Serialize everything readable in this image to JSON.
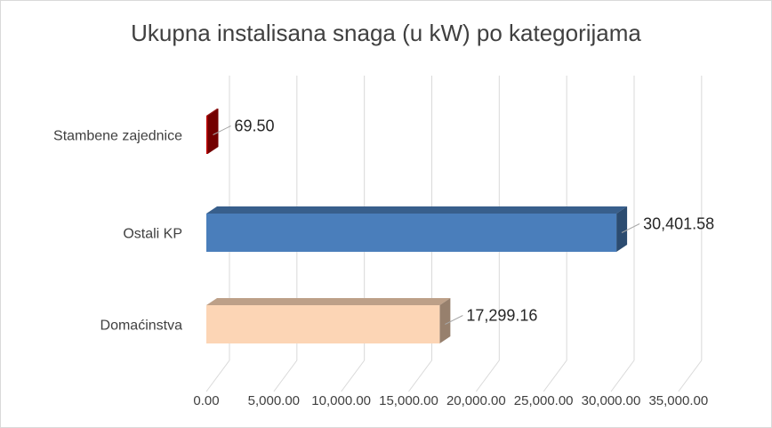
{
  "chart_data": {
    "type": "bar",
    "orientation": "horizontal",
    "style": "3d",
    "title": "Ukupna instalisana snaga (u kW) po kategorijama",
    "categories": [
      "Stambene zajednice",
      "Ostali KP",
      "Domaćinstva"
    ],
    "values": [
      69.5,
      30401.58,
      17299.16
    ],
    "value_labels": [
      "69.50",
      "30,401.58",
      "17,299.16"
    ],
    "colors": [
      "#c00000",
      "#4a7ebb",
      "#fcd5b5"
    ],
    "xlim": [
      0,
      35000
    ],
    "xticks": [
      0,
      5000,
      10000,
      15000,
      20000,
      25000,
      30000,
      35000
    ],
    "xtick_labels": [
      "0.00",
      "5,000.00",
      "10,000.00",
      "15,000.00",
      "20,000.00",
      "25,000.00",
      "30,000.00",
      "35,000.00"
    ],
    "grid": true,
    "legend": "none"
  }
}
